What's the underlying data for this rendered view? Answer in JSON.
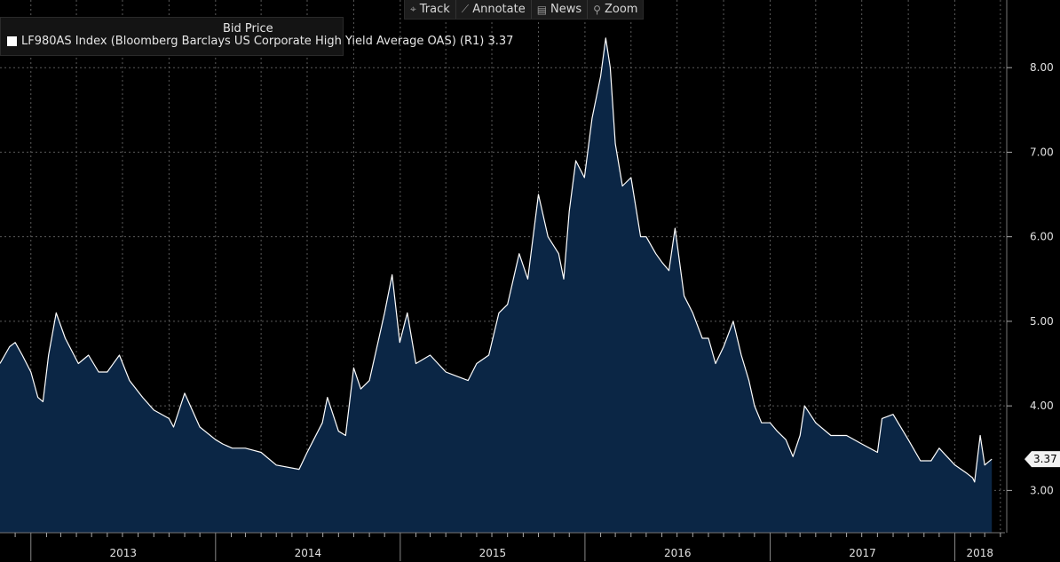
{
  "toolbar": {
    "buttons": [
      {
        "label": "Track",
        "icon": "crosshair-icon"
      },
      {
        "label": "Annotate",
        "icon": "pencil-icon"
      },
      {
        "label": "News",
        "icon": "news-icon"
      },
      {
        "label": "Zoom",
        "icon": "magnifier-icon"
      }
    ]
  },
  "legend": {
    "title": "Bid Price",
    "entry": "LF980AS Index (Bloomberg Barclays US Corporate High Yield Average OAS)  (R1) 3.37"
  },
  "colors": {
    "background": "#000000",
    "area_fill": "#0b2645",
    "line": "#ffffff",
    "grid": "#5a5a5a",
    "axis_text": "#e0e0e0"
  },
  "chart_data": {
    "type": "area",
    "series": [
      {
        "x": [
          "2012-11-01",
          "2012-11-20",
          "2012-12-01",
          "2012-12-15",
          "2013-01-01",
          "2013-01-15",
          "2013-01-25",
          "2013-02-05",
          "2013-02-20",
          "2013-03-10",
          "2013-04-05",
          "2013-04-25",
          "2013-05-15",
          "2013-06-01",
          "2013-06-25",
          "2013-07-15",
          "2013-08-10",
          "2013-09-01",
          "2013-10-01",
          "2013-10-10",
          "2013-11-01",
          "2013-12-01",
          "2014-01-01",
          "2014-01-15",
          "2014-02-03",
          "2014-03-01",
          "2014-04-01",
          "2014-05-01",
          "2014-06-15",
          "2014-07-01",
          "2014-07-31",
          "2014-08-10",
          "2014-09-01",
          "2014-09-15",
          "2014-10-01",
          "2014-10-15",
          "2014-11-01",
          "2014-12-01",
          "2014-12-16",
          "2014-12-31",
          "2015-01-15",
          "2015-02-01",
          "2015-03-01",
          "2015-04-01",
          "2015-05-15",
          "2015-06-01",
          "2015-06-25",
          "2015-07-15",
          "2015-08-01",
          "2015-08-24",
          "2015-09-10",
          "2015-10-01",
          "2015-10-20",
          "2015-11-10",
          "2015-11-20",
          "2015-12-01",
          "2015-12-14",
          "2015-12-31",
          "2016-01-15",
          "2016-02-01",
          "2016-02-11",
          "2016-02-20",
          "2016-03-01",
          "2016-03-15",
          "2016-04-01",
          "2016-04-20",
          "2016-05-01",
          "2016-05-20",
          "2016-06-01",
          "2016-06-15",
          "2016-06-27",
          "2016-07-15",
          "2016-08-01",
          "2016-08-20",
          "2016-09-01",
          "2016-09-15",
          "2016-10-01",
          "2016-10-20",
          "2016-11-05",
          "2016-11-20",
          "2016-12-01",
          "2016-12-15",
          "2017-01-01",
          "2017-01-15",
          "2017-02-01",
          "2017-02-15",
          "2017-03-01",
          "2017-03-10",
          "2017-04-01",
          "2017-05-01",
          "2017-06-01",
          "2017-07-01",
          "2017-08-01",
          "2017-08-10",
          "2017-09-01",
          "2017-10-01",
          "2017-10-25",
          "2017-11-15",
          "2017-12-01",
          "2018-01-01",
          "2018-01-25",
          "2018-02-05",
          "2018-02-09",
          "2018-02-20",
          "2018-03-01",
          "2018-03-15"
        ],
        "y": [
          4.5,
          4.7,
          4.75,
          4.6,
          4.4,
          4.1,
          4.05,
          4.6,
          5.1,
          4.8,
          4.5,
          4.6,
          4.4,
          4.4,
          4.6,
          4.3,
          4.1,
          3.95,
          3.85,
          3.75,
          4.15,
          3.75,
          3.6,
          3.55,
          3.5,
          3.5,
          3.45,
          3.3,
          3.25,
          3.45,
          3.8,
          4.1,
          3.7,
          3.65,
          4.45,
          4.2,
          4.3,
          5.1,
          5.55,
          4.75,
          5.1,
          4.5,
          4.6,
          4.4,
          4.3,
          4.5,
          4.6,
          5.1,
          5.2,
          5.8,
          5.5,
          6.5,
          6.0,
          5.8,
          5.5,
          6.3,
          6.9,
          6.7,
          7.4,
          7.9,
          8.35,
          8.0,
          7.1,
          6.6,
          6.7,
          6.0,
          6.0,
          5.8,
          5.7,
          5.6,
          6.1,
          5.3,
          5.1,
          4.8,
          4.8,
          4.5,
          4.7,
          5.0,
          4.6,
          4.3,
          4.0,
          3.8,
          3.8,
          3.7,
          3.6,
          3.4,
          3.65,
          4.0,
          3.8,
          3.65,
          3.65,
          3.55,
          3.45,
          3.85,
          3.9,
          3.6,
          3.35,
          3.35,
          3.5,
          3.3,
          3.2,
          3.15,
          3.1,
          3.65,
          3.3,
          3.37
        ],
        "line_color": "#ffffff",
        "fill_color": "#0b2645"
      }
    ],
    "ylim": [
      2.5,
      8.8
    ],
    "xlim": [
      "2012-11-01",
      "2018-04-10"
    ],
    "y_ticks": [
      "3.00",
      "4.00",
      "5.00",
      "6.00",
      "7.00",
      "8.00"
    ],
    "x_ticks": [
      "2013",
      "2014",
      "2015",
      "2016",
      "2017",
      "2018"
    ],
    "last_value_label": "3.37",
    "grid": true,
    "y_axis_side": "right",
    "legend_position": "top-left"
  }
}
